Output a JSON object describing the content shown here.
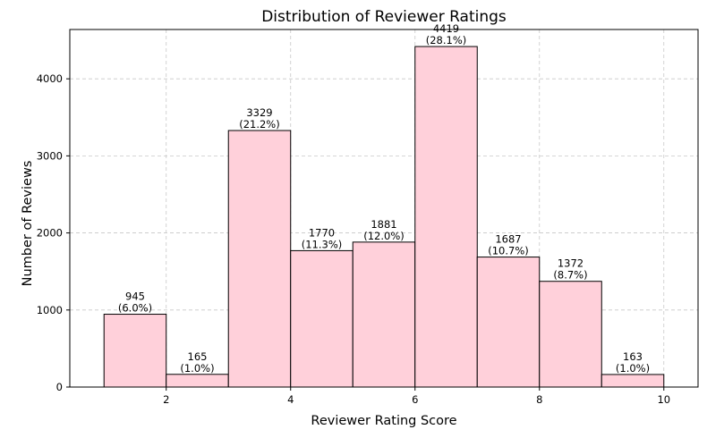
{
  "chart_data": {
    "type": "bar",
    "title": "Distribution of Reviewer Ratings",
    "xlabel": "Reviewer Rating Score",
    "ylabel": "Number of Reviews",
    "xlim": [
      0.45,
      10.55
    ],
    "ylim": [
      0,
      4640
    ],
    "xticks": [
      2,
      4,
      6,
      8,
      10
    ],
    "yticks": [
      0,
      1000,
      2000,
      3000,
      4000
    ],
    "grid": true,
    "bar_color": "#ffd0da",
    "edge_color": "#000000",
    "grid_color": "#c8c8c8",
    "bins": [
      {
        "x0": 1,
        "x1": 2,
        "value": 945,
        "count_label": "945",
        "pct_label": "(6.0%)"
      },
      {
        "x0": 2,
        "x1": 3,
        "value": 165,
        "count_label": "165",
        "pct_label": "(1.0%)"
      },
      {
        "x0": 3,
        "x1": 4,
        "value": 3329,
        "count_label": "3329",
        "pct_label": "(21.2%)"
      },
      {
        "x0": 4,
        "x1": 5,
        "value": 1770,
        "count_label": "1770",
        "pct_label": "(11.3%)"
      },
      {
        "x0": 5,
        "x1": 6,
        "value": 1881,
        "count_label": "1881",
        "pct_label": "(12.0%)"
      },
      {
        "x0": 6,
        "x1": 7,
        "value": 4419,
        "count_label": "4419",
        "pct_label": "(28.1%)"
      },
      {
        "x0": 7,
        "x1": 8,
        "value": 1687,
        "count_label": "1687",
        "pct_label": "(10.7%)"
      },
      {
        "x0": 8,
        "x1": 9,
        "value": 1372,
        "count_label": "1372",
        "pct_label": "(8.7%)"
      },
      {
        "x0": 9,
        "x1": 10,
        "value": 163,
        "count_label": "163",
        "pct_label": "(1.0%)"
      }
    ]
  }
}
